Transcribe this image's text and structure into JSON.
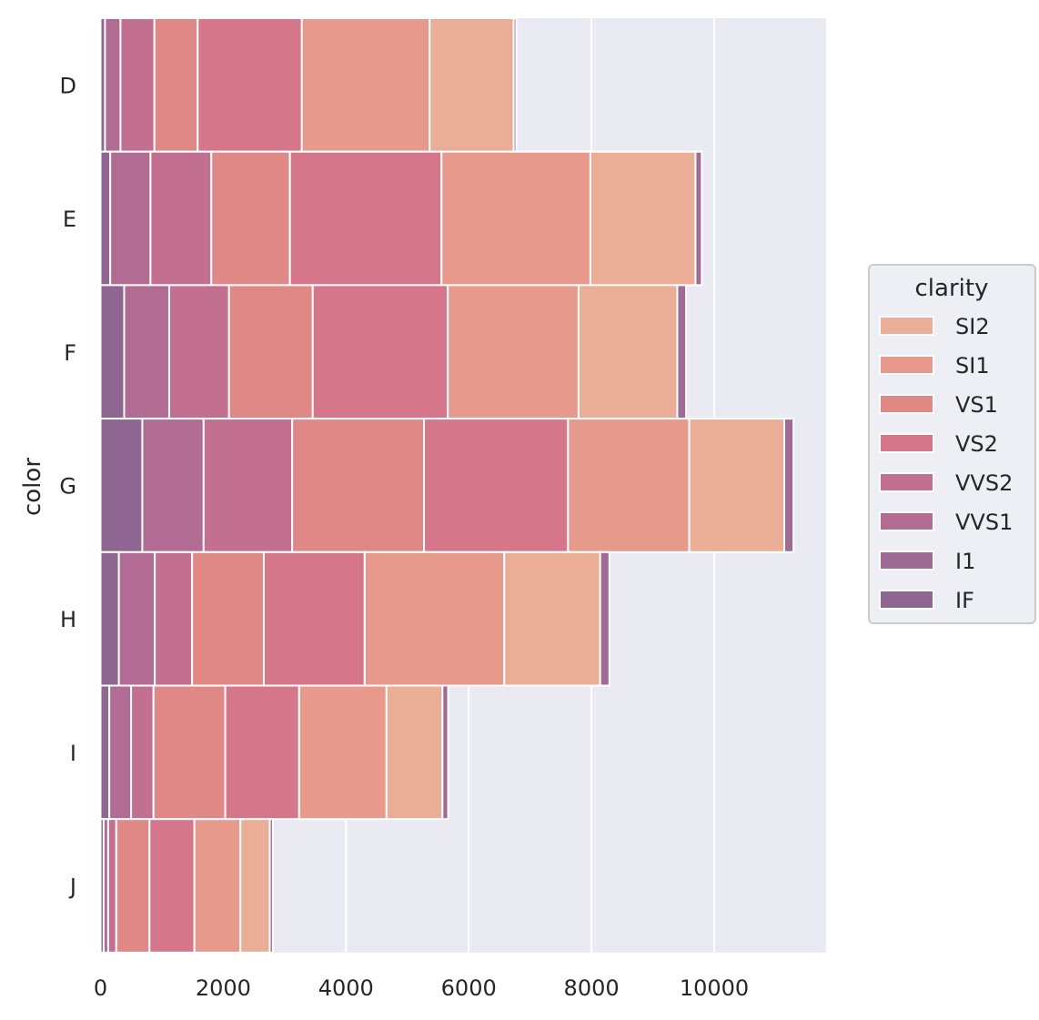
{
  "chart_data": {
    "type": "bar",
    "orientation": "horizontal",
    "stacked": true,
    "title": "",
    "xlabel": "",
    "ylabel": "color",
    "xlim": [
      0,
      11800
    ],
    "xticks": [
      0,
      2000,
      4000,
      6000,
      8000,
      10000
    ],
    "xtick_labels": [
      "0",
      "2000",
      "4000",
      "6000",
      "8000",
      "10000"
    ],
    "grid": true,
    "categories": [
      "D",
      "E",
      "F",
      "G",
      "H",
      "I",
      "J"
    ],
    "stack_order": [
      "IF",
      "VVS1",
      "VVS2",
      "VS1",
      "VS2",
      "SI1",
      "SI2",
      "I1"
    ],
    "series": [
      {
        "name": "SI2",
        "color": "#E9AE95",
        "values": [
          1370,
          1713,
          1609,
          1548,
          1563,
          912,
          479
        ]
      },
      {
        "name": "SI1",
        "color": "#E79A8B",
        "values": [
          2083,
          2426,
          2131,
          1976,
          2275,
          1424,
          750
        ]
      },
      {
        "name": "VS1",
        "color": "#E08886",
        "values": [
          705,
          1281,
          1364,
          2148,
          1169,
          1169,
          542
        ]
      },
      {
        "name": "VS2",
        "color": "#D5768B",
        "values": [
          1697,
          2470,
          2201,
          2347,
          1643,
          1204,
          731
        ]
      },
      {
        "name": "VVS2",
        "color": "#C36F8F",
        "values": [
          553,
          991,
          975,
          1443,
          608,
          365,
          131
        ]
      },
      {
        "name": "VVS1",
        "color": "#B26C94",
        "values": [
          252,
          656,
          734,
          999,
          585,
          355,
          74
        ]
      },
      {
        "name": "I1",
        "color": "#A06A96",
        "values": [
          42,
          102,
          143,
          150,
          150,
          92,
          50
        ]
      },
      {
        "name": "IF",
        "color": "#8F6592",
        "values": [
          73,
          158,
          385,
          681,
          299,
          143,
          51
        ]
      }
    ],
    "legend": {
      "title": "clarity",
      "position": "center-right",
      "entries": [
        "SI2",
        "SI1",
        "VS1",
        "VS2",
        "VVS2",
        "VVS1",
        "I1",
        "IF"
      ]
    },
    "colors": {
      "background": "#EAEAF2",
      "grid": "#FFFFFF",
      "text": "#262626"
    }
  }
}
